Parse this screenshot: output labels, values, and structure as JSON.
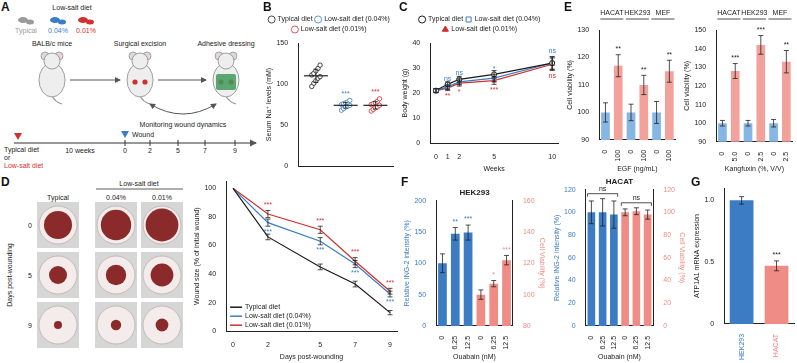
{
  "diagram": {
    "panel": "A",
    "diet_legend": {
      "title": "Low-salt diet",
      "items": [
        "Typical",
        "0.04%",
        "0.01%"
      ]
    },
    "steps": [
      "BALB/c mice",
      "Surgical excision",
      "Adhesive dressing"
    ],
    "loop_label": "Monitoring wound dynamics",
    "timeline": {
      "start": [
        "Typical diet",
        "or",
        "Low-salt diet"
      ],
      "period": "10 weeks",
      "event": "Wound",
      "ticks": [
        "0",
        "2",
        "5",
        "7",
        "9"
      ]
    }
  },
  "wound_images": {
    "panel": "D",
    "column_group": "Low-salt diet",
    "columns": [
      "Typical",
      "0.04%",
      "0.01%"
    ],
    "rows": [
      "0",
      "5",
      "9"
    ],
    "row_axis_label": "Days post-wounding"
  },
  "chart_data": [
    {
      "panel": "B",
      "type": "scatter",
      "y_label": "Serum Na⁺ levels (mM)",
      "ylim": [
        0,
        150
      ],
      "yticks": [
        0,
        50,
        100,
        150
      ],
      "grid": false,
      "legend": "top",
      "tick_labels": "y",
      "series": [
        {
          "name": "Typical diet",
          "color": "#1a1a1a",
          "marker": "open_circle",
          "values": [
            97,
            101,
            104,
            107,
            109,
            111,
            113,
            116,
            119,
            123
          ],
          "mean": 110,
          "error": 8
        },
        {
          "name": "Low-salt diet (0.04%)",
          "color": "#3b7cc4",
          "marker": "open_circle",
          "values": [
            68,
            70,
            72,
            73,
            74,
            75,
            76,
            77,
            78,
            80
          ],
          "mean": 74,
          "error": 3.5,
          "significance": "***"
        },
        {
          "name": "Low-salt diet (0.01%)",
          "color": "#d2302f",
          "marker": "open_circle",
          "values": [
            67,
            69,
            71,
            72,
            74,
            75,
            76,
            77,
            79,
            82
          ],
          "mean": 74,
          "error": 4.5,
          "significance": "***"
        }
      ]
    },
    {
      "panel": "C",
      "type": "line",
      "x_label": "Weeks",
      "y_label": "Body weight (g)",
      "x": [
        0,
        1,
        2,
        5,
        10
      ],
      "xlim": [
        -0.5,
        10.5
      ],
      "xticks": [
        0,
        1,
        2,
        5,
        10
      ],
      "ylim": [
        0,
        40
      ],
      "yticks": [
        0,
        10,
        20,
        30,
        40
      ],
      "grid": false,
      "legend": "top",
      "series": [
        {
          "name": "Typical diet",
          "color": "#1a1a1a",
          "marker": "open_circle",
          "values": [
            21,
            23.5,
            25.5,
            27.5,
            32
          ],
          "errors": [
            0.8,
            1,
            1.2,
            1.5,
            2.5
          ]
        },
        {
          "name": "Low-salt diet (0.04%)",
          "color": "#3b7cc4",
          "marker": "open_square",
          "values": [
            21,
            22.5,
            24.5,
            26,
            32
          ],
          "errors": [
            0.8,
            1,
            1.2,
            1.5,
            2.5
          ],
          "significance": [
            null,
            "ns",
            "ns",
            "*",
            "ns"
          ]
        },
        {
          "name": "Low-salt diet (0.01%)",
          "color": "#d2302f",
          "marker": "triangle",
          "values": [
            21,
            22,
            24,
            25,
            31.5
          ],
          "errors": [
            0.8,
            1,
            1.2,
            1.5,
            2.5
          ],
          "significance": [
            null,
            "**",
            "*",
            "***",
            "ns"
          ]
        }
      ]
    },
    {
      "type": "line",
      "x_label": "Days post-wounding",
      "y_label": "Wound size (% of initial wound)",
      "x": [
        0,
        2,
        5,
        7,
        9
      ],
      "xlim": [
        -0.4,
        9.4
      ],
      "xticks": [
        0,
        2,
        5,
        7,
        9
      ],
      "ylim": [
        0,
        105
      ],
      "yticks": [
        0,
        20,
        40,
        60,
        80,
        100
      ],
      "grid": false,
      "legend": "lower left",
      "series": [
        {
          "name": "Typical diet",
          "color": "#1a1a1a",
          "values": [
            100,
            66,
            45,
            33,
            13
          ],
          "errors": [
            null,
            2,
            2,
            2,
            1.5
          ]
        },
        {
          "name": "Low-salt diet (0.04%)",
          "color": "#3b7cc4",
          "values": [
            100,
            76,
            63,
            47,
            26
          ],
          "errors": [
            null,
            2.5,
            2.5,
            2.5,
            2
          ],
          "significance": [
            null,
            "***",
            "***",
            "***",
            "***"
          ]
        },
        {
          "name": "Low-salt diet (0.01%)",
          "color": "#d2302f",
          "values": [
            100,
            82,
            71,
            49,
            28
          ],
          "errors": [
            null,
            2.5,
            2.5,
            2.5,
            2
          ],
          "significance": [
            null,
            "***",
            "***",
            "***",
            "***"
          ]
        }
      ]
    },
    {
      "panel": "E",
      "type": "bar",
      "x_label": "EGF (ng/mL)",
      "y_label": "Cell viability (%)",
      "groups": [
        "HACAT",
        "HEK293",
        "MEF"
      ],
      "categories": [
        "0",
        "100",
        "0",
        "100",
        "0",
        "100"
      ],
      "values": [
        100,
        117,
        100,
        110,
        100,
        115
      ],
      "errors": [
        3.5,
        4,
        3,
        3.5,
        4,
        4
      ],
      "colors": [
        "#86b6e3",
        "#f3a19b",
        "#86b6e3",
        "#f3a19b",
        "#86b6e3",
        "#f3a19b"
      ],
      "significance": [
        null,
        "**",
        null,
        "**",
        null,
        "**"
      ],
      "ylim": [
        90,
        130
      ],
      "yticks": [
        90,
        100,
        110,
        120,
        130
      ],
      "grid": false
    },
    {
      "type": "bar",
      "x_label": "Kangfuxin (%, V/V)",
      "y_label": "Cell viability (%)",
      "groups": [
        "HACAT",
        "HEK293",
        "MEF"
      ],
      "categories": [
        "0",
        "5.0",
        "0",
        "2.5",
        "0",
        "2.5"
      ],
      "values": [
        100,
        128,
        100,
        142,
        100,
        133
      ],
      "errors": [
        1.5,
        4,
        1.5,
        5,
        2,
        6
      ],
      "colors": [
        "#86b6e3",
        "#f3a19b",
        "#86b6e3",
        "#f3a19b",
        "#86b6e3",
        "#f3a19b"
      ],
      "significance": [
        null,
        "***",
        null,
        "***",
        null,
        "**"
      ],
      "ylim": [
        90,
        150
      ],
      "yticks": [
        90,
        100,
        110,
        120,
        130,
        140,
        150
      ],
      "grid": false
    },
    {
      "panel": "F",
      "type": "bar",
      "title": "HEK293",
      "x_label": "Ouabain (nM)",
      "y_label": "Relative ING-2 intensity (%)",
      "y2_label": "Cell Viability (%)",
      "categories": [
        "0",
        "6.25",
        "12.5",
        "0",
        "6.25",
        "12.5"
      ],
      "ylim": [
        0,
        200
      ],
      "yticks": [
        0,
        50,
        100,
        150,
        200
      ],
      "y2lim": [
        80,
        160
      ],
      "y2ticks": [
        80,
        100,
        120,
        140,
        160
      ],
      "grid": false,
      "series": [
        {
          "color": "#3b7cc4",
          "values": [
            100,
            147,
            149,
            null,
            null,
            null
          ],
          "errors": [
            15,
            10,
            12,
            null,
            null,
            null
          ],
          "significance": [
            null,
            "**",
            "***",
            null,
            null,
            null
          ]
        },
        {
          "color": "#ef8c86",
          "axis": "y2",
          "values": [
            null,
            null,
            null,
            100,
            107,
            122
          ],
          "errors": [
            null,
            null,
            null,
            3,
            2,
            3
          ],
          "significance": [
            null,
            null,
            null,
            null,
            "*",
            "***"
          ]
        }
      ]
    },
    {
      "type": "bar",
      "title": "HACAT",
      "x_label": "Ouabain (nM)",
      "y_label": "Relative ING-2 intensity (%)",
      "y2_label": "Cell Viability (%)",
      "categories": [
        "0",
        "6.25",
        "12.5",
        "0",
        "6.25",
        "12.5"
      ],
      "ylim": [
        0,
        120
      ],
      "yticks": [
        0,
        20,
        40,
        60,
        80,
        100,
        120
      ],
      "y2lim": [
        0,
        120
      ],
      "y2ticks": [
        0,
        20,
        40,
        60,
        80,
        100,
        120
      ],
      "grid": false,
      "series": [
        {
          "color": "#3b7cc4",
          "values": [
            100,
            100,
            98,
            null,
            null,
            null
          ],
          "errors": [
            10,
            12,
            12,
            null,
            null,
            null
          ],
          "bracket_label": "ns"
        },
        {
          "color": "#ef8c86",
          "axis": "y2",
          "values": [
            null,
            null,
            null,
            100,
            101,
            98
          ],
          "errors": [
            null,
            null,
            null,
            3,
            3,
            4
          ],
          "bracket_label": "ns"
        }
      ]
    },
    {
      "panel": "G",
      "type": "bar",
      "y_label": "ATP1A1 mRNA expression",
      "categories": [
        "HEK293",
        "HACAT"
      ],
      "values": [
        1,
        0.47
      ],
      "errors": [
        0.03,
        0.04
      ],
      "colors": [
        "#3b7cc4",
        "#ef8c86"
      ],
      "significance": [
        null,
        "***"
      ],
      "ylim": [
        0,
        1.1
      ],
      "yticks": [
        0,
        0.5,
        {
          "value": 1,
          "label": "1.0"
        }
      ],
      "grid": false
    }
  ]
}
